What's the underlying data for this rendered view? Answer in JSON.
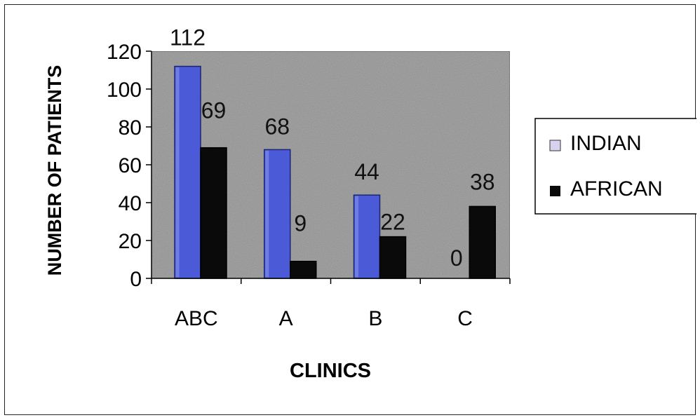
{
  "chart_data": {
    "type": "bar",
    "title": "",
    "xlabel": "CLINICS",
    "ylabel": "NUMBER OF PATIENTS",
    "categories": [
      "ABC",
      "A",
      "B",
      "C"
    ],
    "series": [
      {
        "name": "INDIAN",
        "values": [
          112,
          68,
          44,
          0
        ],
        "color": "#4b5ad6"
      },
      {
        "name": "AFRICAN",
        "values": [
          69,
          9,
          22,
          38
        ],
        "color": "#0a0a0a"
      }
    ],
    "data_labels": [
      [
        "112",
        "68",
        "44",
        "0"
      ],
      [
        "69",
        "9",
        "22",
        "38"
      ]
    ],
    "ylim": [
      0,
      120
    ],
    "yticks": [
      "0",
      "20",
      "40",
      "60",
      "80",
      "100",
      "120"
    ],
    "grid": false,
    "legend": "right",
    "plot_background": "#a6a6a6"
  }
}
